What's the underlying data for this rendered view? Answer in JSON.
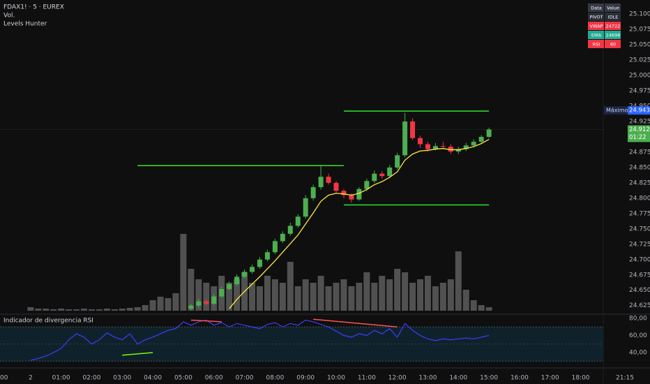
{
  "header": {
    "symbol": "FDAX1! · 5 · EUREX",
    "volume_label": "Vol.",
    "indicator": "Levels Hunter",
    "rsi_title": "Indicador de divergencia RSI"
  },
  "table": {
    "header": [
      "Data",
      "Value"
    ],
    "rows": [
      [
        "PIVOT",
        "IDLE"
      ],
      [
        "VWAP",
        "24722"
      ],
      [
        "EMA",
        "24698"
      ],
      [
        "RSI",
        "60"
      ]
    ]
  },
  "chart_data": [
    {
      "type": "candlestick",
      "up_color": "#4caf50",
      "down_color": "#f23645",
      "x": [
        "05:15",
        "05:30",
        "05:45",
        "06:00",
        "06:15",
        "06:30",
        "06:45",
        "07:00",
        "07:15",
        "07:30",
        "07:45",
        "08:00",
        "08:15",
        "08:30",
        "08:45",
        "09:00",
        "09:15",
        "09:30",
        "09:45",
        "10:00",
        "10:15",
        "10:30",
        "10:45",
        "11:00",
        "11:15",
        "11:30",
        "11:45",
        "12:00",
        "12:15",
        "12:30",
        "12:45",
        "13:00",
        "13:15",
        "13:30",
        "13:45",
        "14:00",
        "14:15",
        "14:30",
        "14:45",
        "15:00"
      ],
      "open": [
        24620,
        24625,
        24632,
        24628,
        24640,
        24652,
        24660,
        24672,
        24680,
        24688,
        24700,
        24712,
        24730,
        24742,
        24755,
        24770,
        24800,
        24818,
        24835,
        24825,
        24812,
        24805,
        24798,
        24815,
        24828,
        24840,
        24836,
        24850,
        24870,
        24925,
        24898,
        24888,
        24880,
        24885,
        24884,
        24876,
        24880,
        24886,
        24892,
        24900
      ],
      "high": [
        24628,
        24636,
        24635,
        24644,
        24656,
        24664,
        24676,
        24684,
        24692,
        24704,
        24716,
        24734,
        24746,
        24760,
        24774,
        24805,
        24822,
        24852,
        24840,
        24828,
        24815,
        24808,
        24818,
        24832,
        24845,
        24844,
        24854,
        24874,
        24939,
        24930,
        24902,
        24892,
        24890,
        24892,
        24888,
        24884,
        24890,
        24896,
        24903,
        24915
      ],
      "low": [
        24617,
        24622,
        24625,
        24626,
        24638,
        24650,
        24657,
        24669,
        24677,
        24685,
        24697,
        24709,
        24727,
        24739,
        24752,
        24767,
        24796,
        24814,
        24822,
        24809,
        24800,
        24793,
        24796,
        24812,
        24825,
        24832,
        24833,
        24847,
        24867,
        24895,
        24882,
        24876,
        24878,
        24880,
        24872,
        24872,
        24877,
        24883,
        24890,
        24898
      ],
      "close": [
        24625,
        24632,
        24628,
        24640,
        24652,
        24660,
        24672,
        24680,
        24688,
        24700,
        24712,
        24730,
        24742,
        24755,
        24770,
        24800,
        24818,
        24835,
        24825,
        24812,
        24805,
        24798,
        24815,
        24828,
        24840,
        24836,
        24850,
        24870,
        24925,
        24898,
        24888,
        24880,
        24885,
        24884,
        24876,
        24880,
        24886,
        24892,
        24900,
        24912
      ],
      "ema": {
        "color": "#ffeb3b",
        "values": [
          null,
          null,
          null,
          null,
          null,
          24620,
          24635,
          24648,
          24660,
          24672,
          24685,
          24698,
          24712,
          24726,
          24740,
          24758,
          24776,
          24795,
          24805,
          24808,
          24807,
          24805,
          24808,
          24814,
          24822,
          24827,
          24834,
          24843,
          24862,
          24872,
          24877,
          24878,
          24880,
          24881,
          24879,
          24879,
          24881,
          24884,
          24889,
          24896
        ]
      },
      "levels": {
        "color": "#2ee62e",
        "items": [
          {
            "from": "03:30",
            "to": "10:15",
            "value": 24853
          },
          {
            "from": "10:15",
            "to": "15:00",
            "value": 24942
          },
          {
            "from": "10:15",
            "to": "15:00",
            "value": 24789
          }
        ]
      },
      "max_label": {
        "text": "Máximo",
        "value": 24943,
        "label": "24.943"
      },
      "last_price": {
        "value": 24912,
        "label": "24.912",
        "countdown": "01:22"
      },
      "ylim": [
        24611,
        25123
      ],
      "yticks": [
        {
          "value": 25100,
          "label": "25.100"
        },
        {
          "value": 25075,
          "label": "25.075"
        },
        {
          "value": 25050,
          "label": "25.050"
        },
        {
          "value": 25025,
          "label": "25.025"
        },
        {
          "value": 25000,
          "label": "25.000"
        },
        {
          "value": 24975,
          "label": "24.975"
        },
        {
          "value": 24950,
          "label": "24.950"
        },
        {
          "value": 24925,
          "label": "24.925"
        },
        {
          "value": 24900,
          "label": "24.900"
        },
        {
          "value": 24875,
          "label": "24.875"
        },
        {
          "value": 24850,
          "label": "24.850"
        },
        {
          "value": 24825,
          "label": "24.825"
        },
        {
          "value": 24800,
          "label": "24.800"
        },
        {
          "value": 24775,
          "label": "24.775"
        },
        {
          "value": 24750,
          "label": "24.750"
        },
        {
          "value": 24725,
          "label": "24.725"
        },
        {
          "value": 24700,
          "label": "24.700"
        },
        {
          "value": 24675,
          "label": "24.675"
        },
        {
          "value": 24650,
          "label": "24.650"
        },
        {
          "value": 24625,
          "label": "24.625"
        }
      ]
    },
    {
      "type": "bar",
      "color": "#5d5d5d",
      "x": [
        "00:00",
        "00:15",
        "00:30",
        "00:45",
        "01:00",
        "01:15",
        "01:30",
        "01:45",
        "02:00",
        "02:15",
        "02:30",
        "02:45",
        "03:00",
        "03:15",
        "03:30",
        "03:45",
        "04:00",
        "04:15",
        "04:30",
        "04:45",
        "05:00",
        "05:15",
        "05:30",
        "05:45",
        "06:00",
        "06:15",
        "06:30",
        "06:45",
        "07:00",
        "07:15",
        "07:30",
        "07:45",
        "08:00",
        "08:15",
        "08:30",
        "08:45",
        "09:00",
        "09:15",
        "09:30",
        "09:45",
        "10:00",
        "10:15",
        "10:30",
        "10:45",
        "11:00",
        "11:15",
        "11:30",
        "11:45",
        "12:00",
        "12:15",
        "12:30",
        "12:45",
        "13:00",
        "13:15",
        "13:30",
        "13:45",
        "14:00",
        "14:15",
        "14:30",
        "14:45",
        "15:00"
      ],
      "values": [
        500,
        300,
        300,
        200,
        300,
        200,
        200,
        300,
        200,
        200,
        300,
        200,
        300,
        400,
        500,
        800,
        1500,
        2000,
        1800,
        2500,
        11000,
        6000,
        4500,
        4000,
        3500,
        5000,
        4000,
        4500,
        5500,
        4000,
        3500,
        5000,
        4500,
        4000,
        7000,
        3500,
        4500,
        4000,
        5000,
        3500,
        4000,
        4500,
        3500,
        4000,
        5500,
        4000,
        5000,
        4500,
        6000,
        5500,
        4000,
        4500,
        5000,
        3500,
        4000,
        4500,
        8500,
        3000,
        1500,
        800,
        500
      ],
      "ylim": [
        0,
        12000
      ]
    },
    {
      "type": "line",
      "color": "#3d3dff",
      "x": [
        "00:00",
        "00:15",
        "00:30",
        "00:45",
        "01:00",
        "01:15",
        "01:30",
        "01:45",
        "02:00",
        "02:15",
        "02:30",
        "02:45",
        "03:00",
        "03:15",
        "03:30",
        "03:45",
        "04:00",
        "04:15",
        "04:30",
        "04:45",
        "05:00",
        "05:15",
        "05:30",
        "05:45",
        "06:00",
        "06:15",
        "06:30",
        "06:45",
        "07:00",
        "07:15",
        "07:30",
        "07:45",
        "08:00",
        "08:15",
        "08:30",
        "08:45",
        "09:00",
        "09:15",
        "09:30",
        "09:45",
        "10:00",
        "10:15",
        "10:30",
        "10:45",
        "11:00",
        "11:15",
        "11:30",
        "11:45",
        "12:00",
        "12:15",
        "12:30",
        "12:45",
        "13:00",
        "13:15",
        "13:30",
        "13:45",
        "14:00",
        "14:15",
        "14:30",
        "14:45",
        "15:00"
      ],
      "values": [
        31,
        33,
        36,
        40,
        45,
        55,
        62,
        58,
        50,
        55,
        63,
        58,
        55,
        62,
        50,
        55,
        58,
        62,
        66,
        68,
        76,
        72,
        76,
        78,
        72,
        75,
        70,
        74,
        72,
        70,
        68,
        73,
        75,
        70,
        74,
        72,
        78,
        76,
        73,
        70,
        65,
        60,
        58,
        62,
        60,
        66,
        62,
        68,
        58,
        74,
        66,
        60,
        56,
        54,
        56,
        55,
        56,
        57,
        56,
        58,
        60
      ],
      "upper_band": 70,
      "lower_band": 30,
      "mid_line": 50,
      "divergences": [
        {
          "from": "05:15",
          "to": "06:15",
          "start": 78,
          "end": 76,
          "color": "#ff5252"
        },
        {
          "from": "09:15",
          "to": "12:00",
          "start": 79,
          "end": 70,
          "color": "#ff5252"
        },
        {
          "from": "03:00",
          "to": "04:00",
          "start": 37,
          "end": 40,
          "color": "#76ff03"
        }
      ],
      "ylim": [
        23.7,
        84.9
      ],
      "yticks": [
        {
          "value": 80,
          "label": "80,00"
        },
        {
          "value": 60,
          "label": "60,00"
        },
        {
          "value": 40,
          "label": "40,00"
        }
      ],
      "xlim": [
        -1.0,
        18.74
      ],
      "xticks": [
        {
          "value": -1,
          "label": "00"
        },
        {
          "value": 0,
          "label": "2"
        },
        {
          "value": 1,
          "label": "01:00"
        },
        {
          "value": 2,
          "label": "02:00"
        },
        {
          "value": 3,
          "label": "03:00"
        },
        {
          "value": 4,
          "label": "04:00"
        },
        {
          "value": 5,
          "label": "05:00"
        },
        {
          "value": 6,
          "label": "06:00"
        },
        {
          "value": 7,
          "label": "07:00"
        },
        {
          "value": 8,
          "label": "08:00"
        },
        {
          "value": 9,
          "label": "09:00"
        },
        {
          "value": 10,
          "label": "10:00"
        },
        {
          "value": 11,
          "label": "11:00"
        },
        {
          "value": 12,
          "label": "12:00"
        },
        {
          "value": 13,
          "label": "13:00"
        },
        {
          "value": 14,
          "label": "14:00"
        },
        {
          "value": 15,
          "label": "15:00"
        },
        {
          "value": 16,
          "label": "16:00"
        },
        {
          "value": 17,
          "label": "17:00"
        },
        {
          "value": 18,
          "label": "18:00"
        }
      ],
      "end_label": "21:15"
    }
  ]
}
